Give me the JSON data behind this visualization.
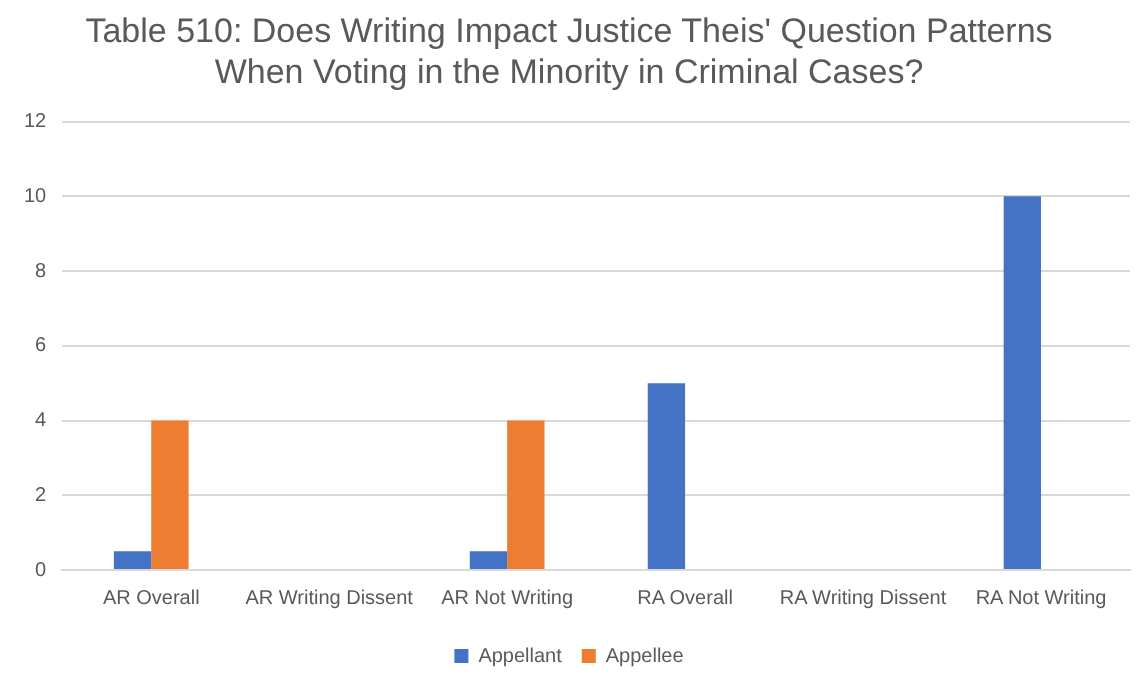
{
  "chart_data": {
    "type": "bar",
    "title": "Table 510: Does Writing Impact Justice Theis' Question Patterns\nWhen Voting in the Minority in Criminal Cases?",
    "categories": [
      "AR Overall",
      "AR Writing Dissent",
      "AR Not Writing",
      "RA Overall",
      "RA Writing Dissent",
      "RA Not Writing"
    ],
    "series": [
      {
        "name": "Appellant",
        "color": "#4472c4",
        "values": [
          0.5,
          0,
          0.5,
          5,
          0,
          10
        ]
      },
      {
        "name": "Appellee",
        "color": "#ed7d31",
        "values": [
          4,
          0,
          4,
          0,
          0,
          0
        ]
      }
    ],
    "ylim": [
      0,
      12
    ],
    "yticks": [
      0,
      2,
      4,
      6,
      8,
      10,
      12
    ],
    "grid": "y",
    "legend": "bottom"
  }
}
